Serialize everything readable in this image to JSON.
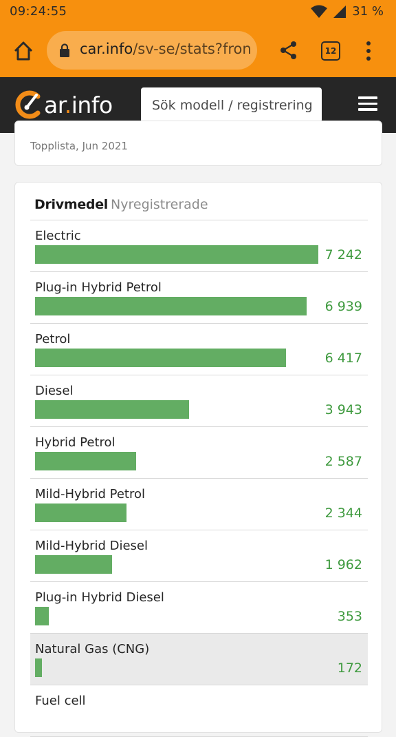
{
  "status_bar": {
    "time": "09:24:55",
    "battery": "31 %"
  },
  "browser": {
    "url_host": "car.info",
    "url_path": "/sv-se/stats?fron",
    "tab_count": "12"
  },
  "site": {
    "logo_text": "ar",
    "logo_dot": ".",
    "logo_suffix": "info",
    "search_placeholder": "Sök modell / registrering"
  },
  "top_card": {
    "subtitle": "Topplista, Jun 2021"
  },
  "stats_card": {
    "title": "Drivmedel",
    "subtitle": "Nyregistrerade"
  },
  "chart_data": {
    "type": "bar",
    "title": "Drivmedel",
    "subtitle": "Nyregistrerade",
    "max": 7242,
    "categories": [
      "Electric",
      "Plug-in Hybrid Petrol",
      "Petrol",
      "Diesel",
      "Hybrid Petrol",
      "Mild-Hybrid Petrol",
      "Mild-Hybrid Diesel",
      "Plug-in Hybrid Diesel",
      "Natural Gas (CNG)",
      "Fuel cell"
    ],
    "values": [
      7242,
      6939,
      6417,
      3943,
      2587,
      2344,
      1962,
      353,
      172,
      null
    ],
    "value_labels": [
      "7 242",
      "6 939",
      "6 417",
      "3 943",
      "2 587",
      "2 344",
      "1 962",
      "353",
      "172",
      ""
    ],
    "highlighted_index": 8,
    "bar_color": "#63ad63",
    "value_color": "#3f9a3f"
  }
}
